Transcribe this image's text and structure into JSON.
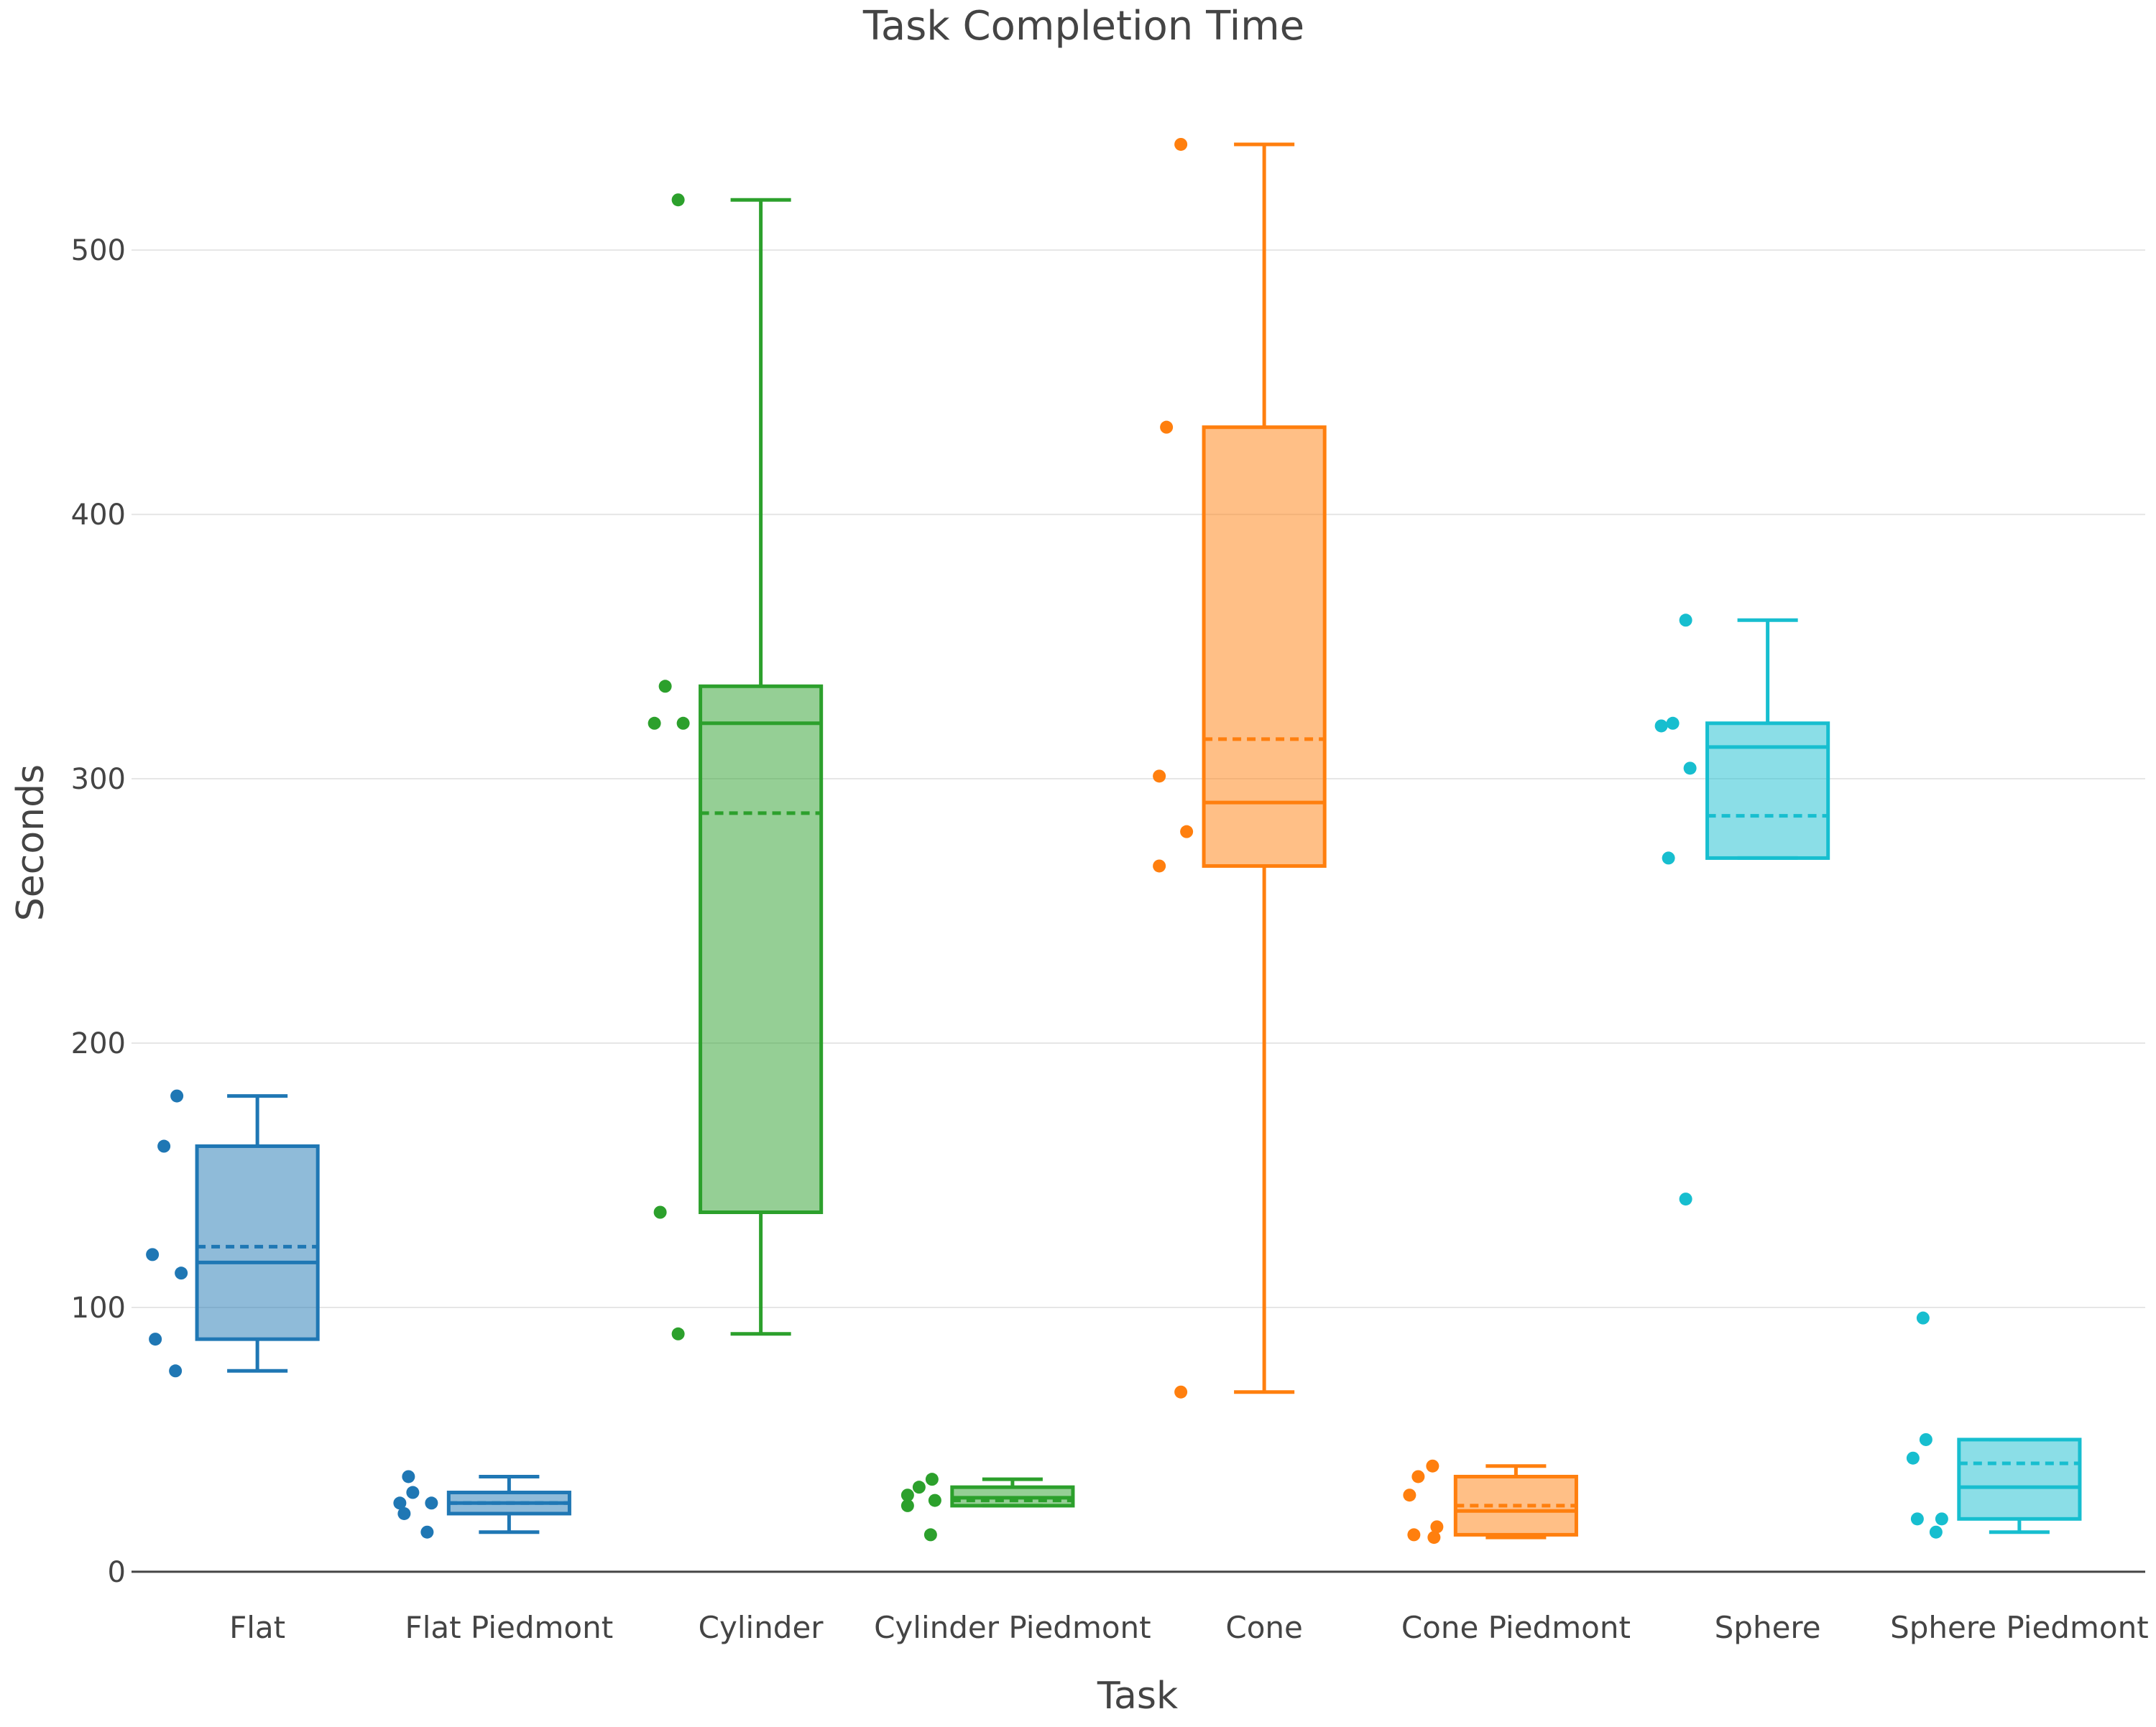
{
  "chart_data": {
    "type": "box",
    "title": "Task Completion Time",
    "xlabel": "Task",
    "ylabel": "Seconds",
    "ylim": [
      -6,
      562
    ],
    "yticks": [
      0,
      100,
      200,
      300,
      400,
      500
    ],
    "grid": true,
    "legend": "none",
    "categories": [
      "Flat",
      "Flat Piedmont",
      "Cylinder",
      "Cylinder Piedmont",
      "Cone",
      "Cone Piedmont",
      "Sphere",
      "Sphere Piedmont"
    ],
    "series": [
      {
        "category": "Flat",
        "color": "#1f77b4",
        "min": 76,
        "q1": 88,
        "median": 117,
        "mean": 123,
        "q3": 161,
        "max": 180,
        "points": [
          180,
          161,
          120,
          113,
          88,
          76
        ]
      },
      {
        "category": "Flat Piedmont",
        "color": "#1f77b4",
        "min": 15,
        "q1": 22,
        "median": 26,
        "mean": 26,
        "q3": 30,
        "max": 36,
        "points": [
          36,
          30,
          26,
          26,
          22,
          15
        ]
      },
      {
        "category": "Cylinder",
        "color": "#2ca02c",
        "min": 90,
        "q1": 136,
        "median": 321,
        "mean": 287,
        "q3": 335,
        "max": 519,
        "points": [
          519,
          335,
          321,
          321,
          136,
          90
        ]
      },
      {
        "category": "Cylinder Piedmont",
        "color": "#2ca02c",
        "min": 25,
        "q1": 25,
        "median": 28,
        "mean": 27,
        "q3": 32,
        "max": 35,
        "points": [
          35,
          32,
          29,
          27,
          25,
          14
        ]
      },
      {
        "category": "Cone",
        "color": "#ff7f0e",
        "min": 68,
        "q1": 267,
        "median": 291,
        "mean": 315,
        "q3": 433,
        "max": 540,
        "points": [
          540,
          433,
          301,
          280,
          267,
          68
        ]
      },
      {
        "category": "Cone Piedmont",
        "color": "#ff7f0e",
        "min": 13,
        "q1": 14,
        "median": 23,
        "mean": 25,
        "q3": 36,
        "max": 40,
        "points": [
          40,
          36,
          29,
          17,
          14,
          13
        ]
      },
      {
        "category": "Sphere",
        "color": "#17becf",
        "min": 270,
        "q1": 270,
        "median": 312,
        "mean": 286,
        "q3": 321,
        "max": 360,
        "points": [
          360,
          321,
          320,
          304,
          270,
          141
        ]
      },
      {
        "category": "Sphere Piedmont",
        "color": "#17becf",
        "min": 15,
        "q1": 20,
        "median": 32,
        "mean": 41,
        "q3": 50,
        "max": 50,
        "points": [
          96,
          50,
          43,
          20,
          20,
          15
        ]
      }
    ]
  }
}
